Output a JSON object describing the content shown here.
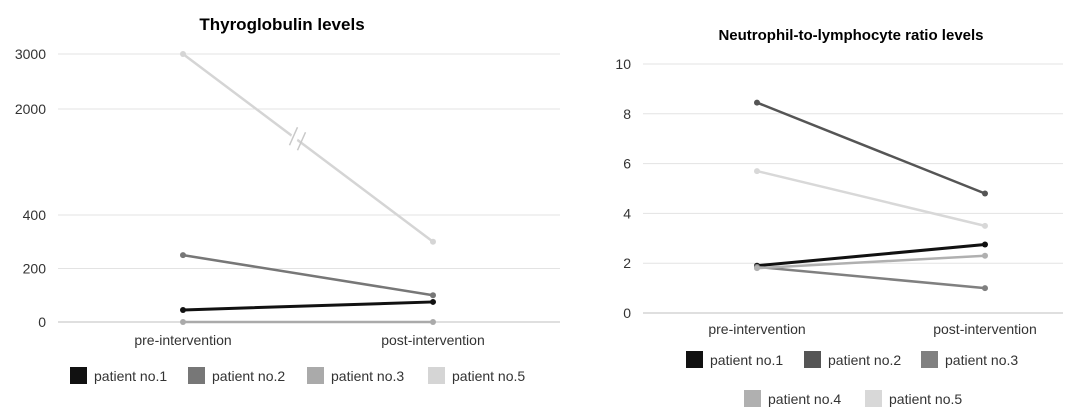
{
  "chart_data": [
    {
      "type": "line",
      "title": "Thyroglobulin levels",
      "categories": [
        "pre-intervention",
        "post-intervention"
      ],
      "yticks": [
        "0",
        "200",
        "400",
        "2000",
        "3000"
      ],
      "axis_break": "between 400 and 2000",
      "grid": true,
      "legend": "bottom",
      "series": [
        {
          "name": "patient no.1",
          "color": "#111111",
          "values": [
            45,
            75
          ]
        },
        {
          "name": "patient no.2",
          "color": "#777777",
          "values": [
            250,
            100
          ]
        },
        {
          "name": "patient no.3",
          "color": "#aaaaaa",
          "values": [
            0,
            0
          ]
        },
        {
          "name": "patient no.5",
          "color": "#d5d5d5",
          "values": [
            3000,
            300
          ]
        }
      ]
    },
    {
      "type": "line",
      "title": "Neutrophil-to-lymphocyte ratio levels",
      "categories": [
        "pre-intervention",
        "post-intervention"
      ],
      "yticks": [
        "0",
        "2",
        "4",
        "6",
        "8",
        "10"
      ],
      "ylim": [
        0,
        10
      ],
      "grid": true,
      "legend": "bottom",
      "series": [
        {
          "name": "patient no.1",
          "color": "#111111",
          "values": [
            1.9,
            2.75
          ]
        },
        {
          "name": "patient no.2",
          "color": "#555555",
          "values": [
            8.45,
            4.8
          ]
        },
        {
          "name": "patient no.3",
          "color": "#808080",
          "values": [
            1.85,
            1.0
          ]
        },
        {
          "name": "patient no.4",
          "color": "#b0b0b0",
          "values": [
            1.8,
            2.3
          ]
        },
        {
          "name": "patient no.5",
          "color": "#d8d8d8",
          "values": [
            5.7,
            3.5
          ]
        }
      ]
    }
  ]
}
